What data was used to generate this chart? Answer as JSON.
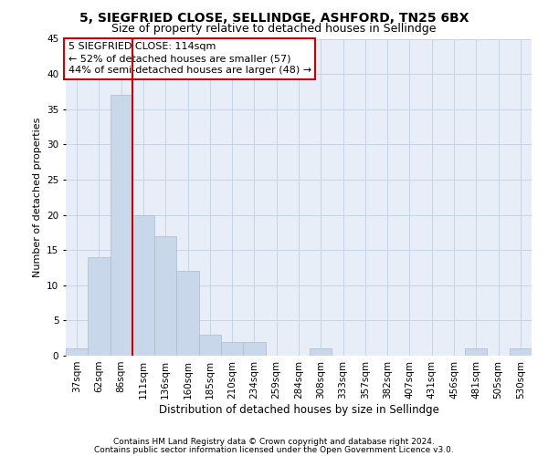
{
  "title1": "5, SIEGFRIED CLOSE, SELLINDGE, ASHFORD, TN25 6BX",
  "title2": "Size of property relative to detached houses in Sellindge",
  "xlabel": "Distribution of detached houses by size in Sellindge",
  "ylabel": "Number of detached properties",
  "categories": [
    "37sqm",
    "62sqm",
    "86sqm",
    "111sqm",
    "136sqm",
    "160sqm",
    "185sqm",
    "210sqm",
    "234sqm",
    "259sqm",
    "284sqm",
    "308sqm",
    "333sqm",
    "357sqm",
    "382sqm",
    "407sqm",
    "431sqm",
    "456sqm",
    "481sqm",
    "505sqm",
    "530sqm"
  ],
  "values": [
    1,
    14,
    37,
    20,
    17,
    12,
    3,
    2,
    2,
    0,
    0,
    1,
    0,
    0,
    0,
    0,
    0,
    0,
    1,
    0,
    1
  ],
  "bar_color": "#c8d8ea",
  "bar_edge_color": "#aabccc",
  "vline_color": "#cc0000",
  "vline_x": 2.5,
  "annotation_text": "5 SIEGFRIED CLOSE: 114sqm\n← 52% of detached houses are smaller (57)\n44% of semi-detached houses are larger (48) →",
  "annotation_box_color": "white",
  "annotation_edge_color": "#cc0000",
  "ylim": [
    0,
    45
  ],
  "yticks": [
    0,
    5,
    10,
    15,
    20,
    25,
    30,
    35,
    40,
    45
  ],
  "grid_color": "#c8d4e4",
  "background_color": "#e8eef8",
  "footnote1": "Contains HM Land Registry data © Crown copyright and database right 2024.",
  "footnote2": "Contains public sector information licensed under the Open Government Licence v3.0.",
  "title1_fontsize": 10,
  "title2_fontsize": 9,
  "xlabel_fontsize": 8.5,
  "ylabel_fontsize": 8,
  "tick_fontsize": 7.5,
  "annotation_fontsize": 8,
  "footnote_fontsize": 6.5
}
